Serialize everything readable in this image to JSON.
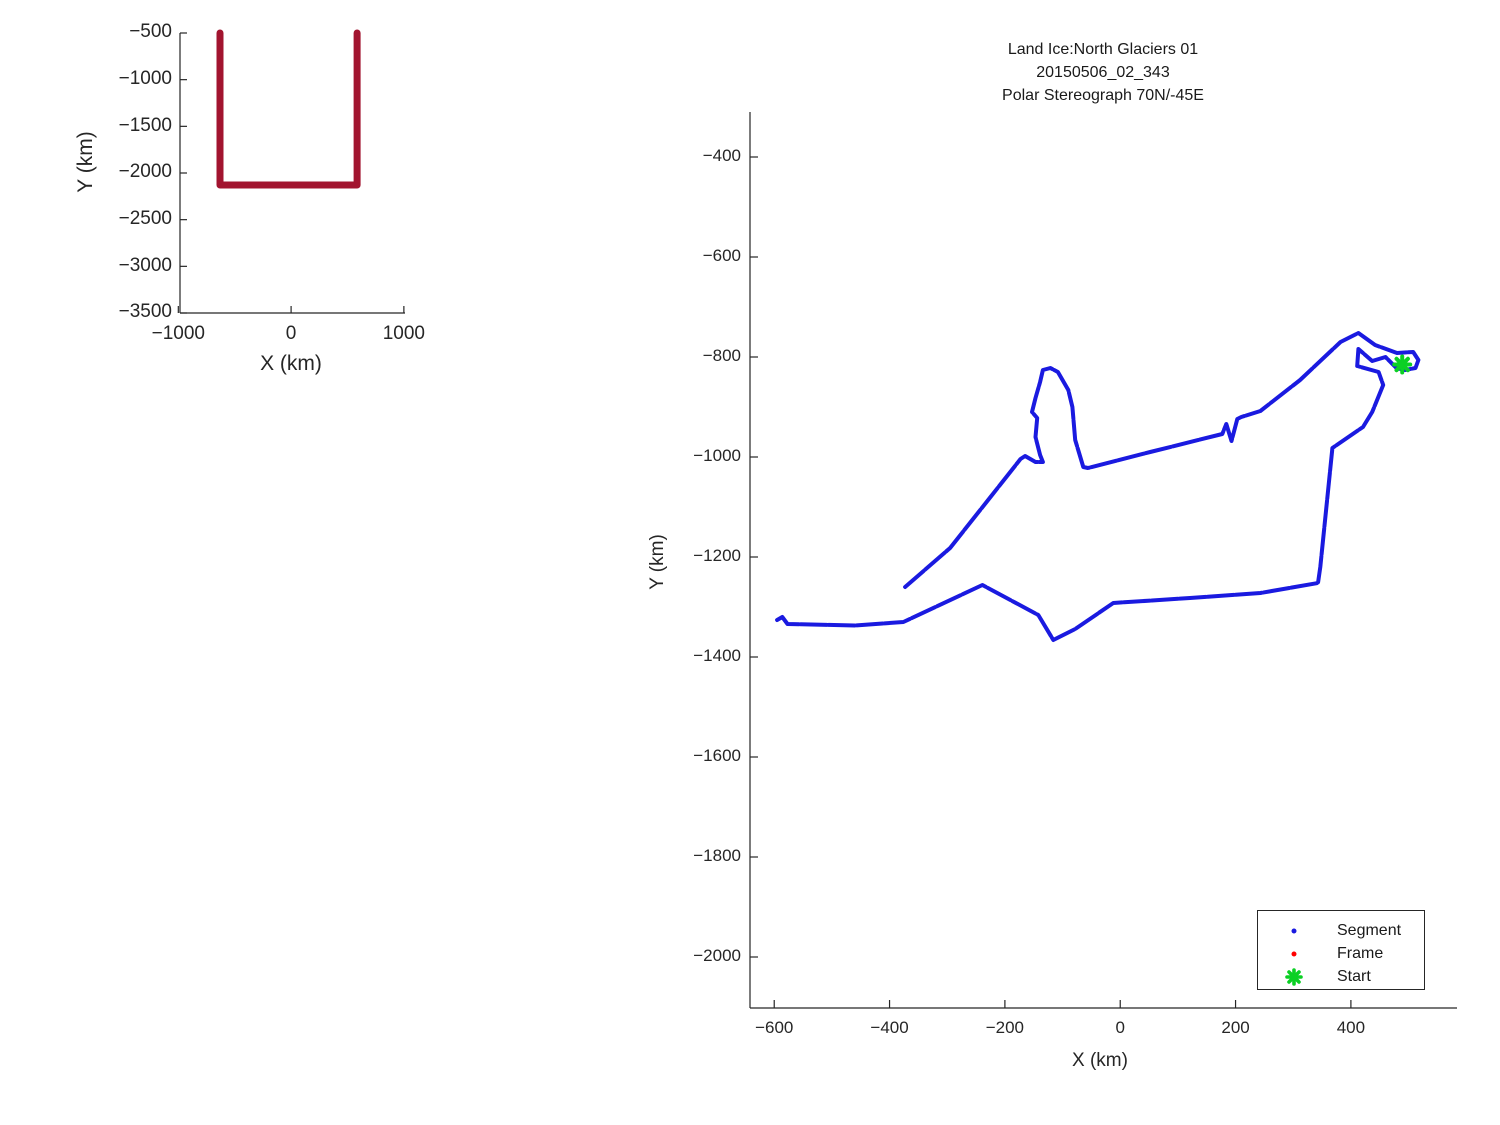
{
  "colors": {
    "background": "#ffffff",
    "axis": "#262626",
    "text": "#262626",
    "coverage_dark_red": "#A2142F",
    "segment_blue": "#1A1AE0",
    "frame_red": "#FF0000",
    "start_green": "#0BD024"
  },
  "overview_plot": {
    "xlabel": "X (km)",
    "ylabel": "Y (km)",
    "xtick_values": [
      -1000,
      0,
      1000
    ],
    "xtick_labels": [
      "−1000",
      "0",
      "1000"
    ],
    "ytick_values": [
      -500,
      -1000,
      -1500,
      -2000,
      -2500,
      -3000,
      -3500
    ],
    "ytick_labels": [
      "−500",
      "−1000",
      "−1500",
      "−2000",
      "−2500",
      "−3000",
      "−3500"
    ]
  },
  "main_plot": {
    "title_lines": [
      "Land Ice:North Glaciers 01",
      "20150506_02_343",
      "Polar Stereograph 70N/-45E"
    ],
    "xlabel": "X (km)",
    "ylabel": "Y (km)",
    "xtick_values": [
      -600,
      -400,
      -200,
      0,
      200,
      400
    ],
    "xtick_labels": [
      "−600",
      "−400",
      "−200",
      "0",
      "200",
      "400"
    ],
    "ytick_values": [
      -400,
      -600,
      -800,
      -1000,
      -1200,
      -1400,
      -1600,
      -1800,
      -2000
    ],
    "ytick_labels": [
      "−400",
      "−600",
      "−800",
      "−1000",
      "−1200",
      "−1400",
      "−1600",
      "−1800",
      "−2000"
    ],
    "legend": {
      "items": [
        {
          "label": "Segment",
          "marker": "blue-dot"
        },
        {
          "label": "Frame",
          "marker": "red-dot"
        },
        {
          "label": "Start",
          "marker": "green-asterisk"
        }
      ]
    }
  },
  "chart_data": [
    {
      "type": "line",
      "name": "coverage-overview",
      "title": "",
      "xlabel": "X (km)",
      "ylabel": "Y (km)",
      "xlim": [
        -985,
        1010
      ],
      "ylim": [
        -3500,
        -500
      ],
      "grid": false,
      "line_color": "#A2142F",
      "line_width": 7,
      "points": [
        [
          -630,
          -500
        ],
        [
          -630,
          -2129
        ],
        [
          585,
          -2129
        ],
        [
          585,
          -500
        ]
      ]
    },
    {
      "type": "line",
      "name": "segment-trajectory",
      "title": "Land Ice:North Glaciers 01 20150506_02_343 Polar Stereograph 70N/-45E",
      "xlabel": "X (km)",
      "ylabel": "Y (km)",
      "xlim": [
        -642,
        584
      ],
      "ylim": [
        -2102,
        -310
      ],
      "grid": false,
      "legend_position": "lower-right",
      "line_color": "#1A1AE0",
      "line_width": 4,
      "start_point": [
        489,
        -815
      ],
      "points": [
        [
          -595,
          -1326
        ],
        [
          -586,
          -1320
        ],
        [
          -577,
          -1334
        ],
        [
          -460,
          -1337
        ],
        [
          -376,
          -1330
        ],
        [
          -239,
          -1256
        ],
        [
          -142,
          -1316
        ],
        [
          -116,
          -1366
        ],
        [
          -78,
          -1344
        ],
        [
          -12,
          -1292
        ],
        [
          121,
          -1282
        ],
        [
          243,
          -1272
        ],
        [
          343,
          -1252
        ],
        [
          347,
          -1220
        ],
        [
          368,
          -982
        ],
        [
          421,
          -940
        ],
        [
          437,
          -910
        ],
        [
          456,
          -856
        ],
        [
          448,
          -830
        ],
        [
          411,
          -818
        ],
        [
          413,
          -784
        ],
        [
          437,
          -808
        ],
        [
          460,
          -800
        ],
        [
          479,
          -822
        ],
        [
          494,
          -826
        ],
        [
          512,
          -822
        ],
        [
          517,
          -806
        ],
        [
          508,
          -790
        ],
        [
          480,
          -792
        ],
        [
          442,
          -776
        ],
        [
          413,
          -752
        ],
        [
          382,
          -770
        ],
        [
          312,
          -846
        ],
        [
          243,
          -908
        ],
        [
          210,
          -920
        ],
        [
          203,
          -924
        ],
        [
          193,
          -968
        ],
        [
          184,
          -934
        ],
        [
          177,
          -954
        ],
        [
          52,
          -990
        ],
        [
          -56,
          -1022
        ],
        [
          -64,
          -1020
        ],
        [
          -78,
          -966
        ],
        [
          -83,
          -900
        ],
        [
          -90,
          -866
        ],
        [
          -108,
          -830
        ],
        [
          -121,
          -822
        ],
        [
          -134,
          -826
        ],
        [
          -139,
          -850
        ],
        [
          -147,
          -882
        ],
        [
          -153,
          -910
        ],
        [
          -144,
          -922
        ],
        [
          -147,
          -960
        ],
        [
          -139,
          -996
        ],
        [
          -134,
          -1010
        ],
        [
          -147,
          -1010
        ],
        [
          -165,
          -998
        ],
        [
          -173,
          -1004
        ],
        [
          -225,
          -1080
        ],
        [
          -295,
          -1182
        ],
        [
          -373,
          -1260
        ]
      ]
    }
  ]
}
